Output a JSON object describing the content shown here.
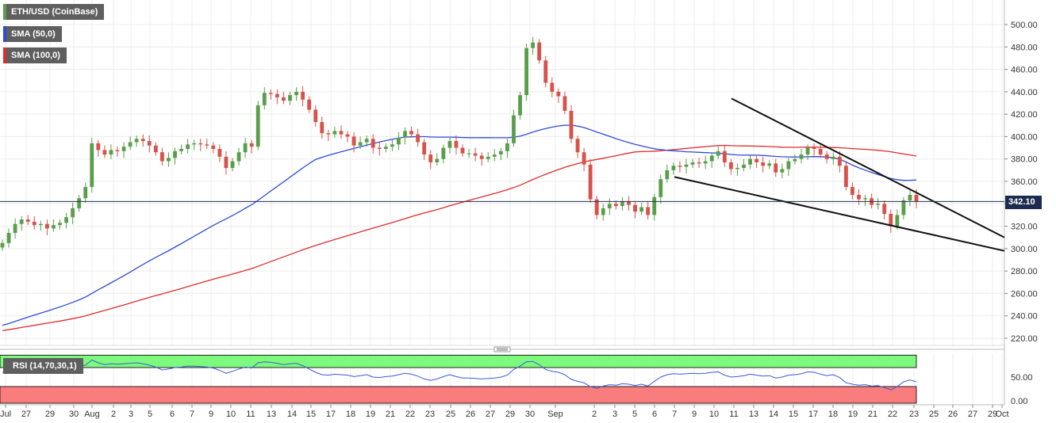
{
  "legend": {
    "instrument": "ETH/USD (CoinBase)",
    "sma50": "SMA (50,0)",
    "sma100": "SMA (100,0)",
    "rsi": "RSI (14,70,30,1)"
  },
  "colors": {
    "up": "#5a9e4b",
    "down": "#d6524a",
    "sma50": "#2f4bd8",
    "sma100": "#e02b2b",
    "rsi_line": "#3b5bdb",
    "rsi_overbought": "#7dfa7d",
    "rsi_oversold": "#fa7d7d",
    "price_tag": "#1d2b4f"
  },
  "current_price": "342.10",
  "chart_data": [
    {
      "type": "candlestick",
      "title": "ETH/USD (CoinBase)",
      "ylim": [
        210,
        510
      ],
      "y_ticks": [
        "500.00",
        "480.00",
        "460.00",
        "440.00",
        "420.00",
        "400.00",
        "380.00",
        "360.00",
        "340.00",
        "320.00",
        "300.00",
        "280.00",
        "260.00",
        "240.00",
        "220.00"
      ],
      "x_ticks": [
        "Jul",
        "27",
        "29",
        "30",
        "Aug",
        "2",
        "3",
        "5",
        "6",
        "7",
        "9",
        "10",
        "11",
        "13",
        "14",
        "15",
        "17",
        "18",
        "19",
        "21",
        "22",
        "23",
        "25",
        "26",
        "27",
        "29",
        "30",
        "Sep",
        "2",
        "3",
        "5",
        "6",
        "7",
        "9",
        "10",
        "11",
        "13",
        "14",
        "15",
        "17",
        "18",
        "19",
        "21",
        "22",
        "23",
        "25",
        "26",
        "27",
        "29",
        "Oct"
      ],
      "grid": true,
      "last_price": 342.1,
      "close": [
        305,
        314,
        322,
        326,
        324,
        321,
        322,
        318,
        321,
        323,
        328,
        336,
        345,
        355,
        394,
        388,
        384,
        388,
        387,
        391,
        395,
        398,
        396,
        392,
        386,
        378,
        381,
        387,
        389,
        393,
        394,
        393,
        392,
        389,
        382,
        372,
        378,
        386,
        394,
        391,
        428,
        439,
        438,
        435,
        432,
        437,
        440,
        433,
        424,
        413,
        403,
        402,
        405,
        402,
        400,
        392,
        395,
        398,
        390,
        389,
        391,
        393,
        399,
        405,
        402,
        395,
        384,
        377,
        380,
        390,
        396,
        390,
        385,
        385,
        383,
        380,
        382,
        384,
        387,
        394,
        419,
        437,
        479,
        484,
        468,
        448,
        440,
        436,
        423,
        398,
        386,
        375,
        344,
        330,
        336,
        340,
        338,
        342,
        339,
        333,
        337,
        330,
        346,
        362,
        370,
        374,
        373,
        375,
        377,
        376,
        378,
        383,
        387,
        377,
        371,
        372,
        375,
        380,
        377,
        374,
        376,
        368,
        371,
        378,
        380,
        384,
        390,
        389,
        384,
        380,
        382,
        374,
        355,
        348,
        344,
        345,
        339,
        340,
        331,
        320,
        330,
        343,
        348,
        342
      ],
      "annotations": [
        {
          "type": "trendline",
          "from": {
            "x": "Sep 13",
            "y": 434
          },
          "to": {
            "x": "Oct 1",
            "y": 310
          }
        },
        {
          "type": "trendline",
          "from": {
            "x": "Sep 9",
            "y": 364
          },
          "to": {
            "x": "Oct 1",
            "y": 298
          }
        }
      ],
      "series": [
        {
          "name": "SMA (50,0)"
        },
        {
          "name": "SMA (100,0)"
        }
      ]
    },
    {
      "type": "line",
      "title": "RSI (14,70,30,1)",
      "ylim": [
        0,
        100
      ],
      "y_ticks": [
        "50.00",
        "0.00"
      ],
      "overbought": 70,
      "oversold": 30,
      "values": [
        60,
        63,
        66,
        67,
        66,
        64,
        64,
        62,
        63,
        64,
        66,
        69,
        72,
        75,
        86,
        80,
        76,
        78,
        77,
        78,
        79,
        80,
        78,
        75,
        71,
        65,
        67,
        70,
        71,
        73,
        73,
        72,
        71,
        69,
        64,
        58,
        62,
        67,
        71,
        69,
        80,
        82,
        81,
        79,
        76,
        78,
        79,
        74,
        67,
        60,
        55,
        54,
        56,
        55,
        54,
        51,
        53,
        55,
        50,
        49,
        51,
        52,
        55,
        58,
        56,
        52,
        46,
        43,
        46,
        51,
        55,
        51,
        48,
        48,
        47,
        46,
        47,
        48,
        50,
        54,
        66,
        73,
        82,
        83,
        76,
        66,
        62,
        60,
        55,
        45,
        41,
        38,
        30,
        26,
        31,
        34,
        33,
        36,
        35,
        32,
        35,
        31,
        41,
        50,
        55,
        57,
        56,
        57,
        58,
        57,
        58,
        60,
        61,
        54,
        50,
        51,
        53,
        56,
        54,
        52,
        53,
        48,
        50,
        54,
        55,
        57,
        61,
        60,
        56,
        53,
        55,
        49,
        38,
        35,
        33,
        34,
        31,
        32,
        28,
        23,
        30,
        40,
        44,
        40
      ]
    }
  ]
}
